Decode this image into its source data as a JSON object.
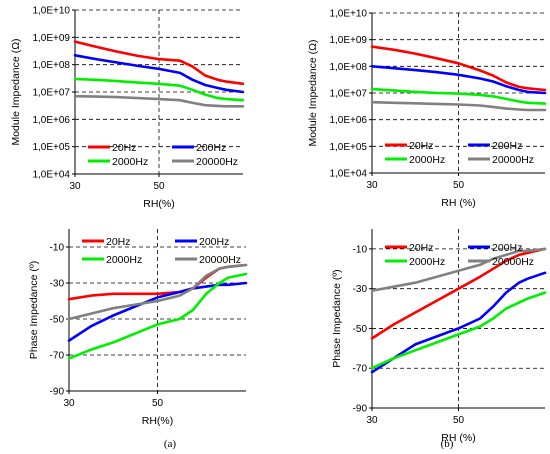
{
  "chart_data": [
    {
      "id": "a-top",
      "type": "line",
      "xlabel": "RH(%)",
      "ylabel": "Module Impedance (Ω)",
      "xlim": [
        30,
        70
      ],
      "ylim": [
        10000,
        10000000000
      ],
      "yscale": "log",
      "xticks": [
        30,
        50
      ],
      "xtick_labels": [
        "30",
        "50"
      ],
      "yticks": [
        10000,
        100000,
        1000000,
        10000000,
        100000000,
        1000000000,
        10000000000
      ],
      "ytick_labels": [
        "1,0E+04",
        "1,0E+05",
        "1,0E+06",
        "1,0E+07",
        "1,0E+08",
        "1,0E+09",
        "1,0E+10"
      ],
      "grid": "dashed",
      "legend": "bottom",
      "series": [
        {
          "name": "20Hz",
          "color": "#ff0000",
          "x": [
            30,
            35,
            40,
            45,
            50,
            55,
            58,
            61,
            64,
            66,
            70
          ],
          "y": [
            700000000,
            450000000,
            300000000,
            210000000,
            160000000,
            140000000,
            85000000,
            40000000,
            28000000,
            24000000,
            20000000
          ]
        },
        {
          "name": "200Hz",
          "color": "#0000ff",
          "x": [
            30,
            35,
            40,
            45,
            50,
            55,
            58,
            61,
            64,
            66,
            70
          ],
          "y": [
            220000000,
            160000000,
            120000000,
            90000000,
            70000000,
            50000000,
            28000000,
            18000000,
            14000000,
            12000000,
            10000000
          ]
        },
        {
          "name": "2000Hz",
          "color": "#00ee00",
          "x": [
            30,
            35,
            40,
            45,
            50,
            55,
            58,
            61,
            64,
            66,
            70
          ],
          "y": [
            30000000,
            28000000,
            25000000,
            22000000,
            20000000,
            17000000,
            12000000,
            8000000,
            6000000,
            5500000,
            5000000
          ]
        },
        {
          "name": "20000Hz",
          "color": "#808080",
          "x": [
            30,
            35,
            40,
            45,
            50,
            55,
            58,
            61,
            64,
            66,
            70
          ],
          "y": [
            7000000,
            6800000,
            6500000,
            6000000,
            5500000,
            5000000,
            4000000,
            3300000,
            3100000,
            3000000,
            3000000
          ]
        }
      ]
    },
    {
      "id": "b-top",
      "type": "line",
      "xlabel": "RH (%)",
      "ylabel": "Module Impedance (Ω)",
      "xlim": [
        30,
        70
      ],
      "ylim": [
        10000,
        10000000000
      ],
      "yscale": "log",
      "xticks": [
        30,
        50
      ],
      "xtick_labels": [
        "30",
        "50"
      ],
      "yticks": [
        10000,
        100000,
        1000000,
        10000000,
        100000000,
        1000000000,
        10000000000
      ],
      "ytick_labels": [
        "1,0E+04",
        "1,0E+05",
        "1,0E+06",
        "1,0E+07",
        "1,0E+08",
        "1,0E+09",
        "1,0E+10"
      ],
      "grid": "dashed",
      "legend": "bottom",
      "series": [
        {
          "name": "20Hz",
          "color": "#ff0000",
          "x": [
            30,
            35,
            40,
            45,
            50,
            55,
            58,
            61,
            64,
            66,
            70
          ],
          "y": [
            550000000,
            420000000,
            300000000,
            200000000,
            130000000,
            70000000,
            45000000,
            25000000,
            17000000,
            15000000,
            13000000
          ]
        },
        {
          "name": "200Hz",
          "color": "#0000ff",
          "x": [
            30,
            35,
            40,
            45,
            50,
            55,
            58,
            61,
            64,
            66,
            70
          ],
          "y": [
            100000000,
            85000000,
            72000000,
            60000000,
            48000000,
            35000000,
            27000000,
            18000000,
            13000000,
            11000000,
            10000000
          ]
        },
        {
          "name": "2000Hz",
          "color": "#00ee00",
          "x": [
            30,
            35,
            40,
            45,
            50,
            55,
            58,
            61,
            64,
            66,
            70
          ],
          "y": [
            14000000,
            12500000,
            11000000,
            10000000,
            9500000,
            8500000,
            7500000,
            6000000,
            4800000,
            4300000,
            4000000
          ]
        },
        {
          "name": "20000Hz",
          "color": "#808080",
          "x": [
            30,
            35,
            40,
            45,
            50,
            55,
            58,
            61,
            64,
            66,
            70
          ],
          "y": [
            4500000,
            4300000,
            4100000,
            3900000,
            3700000,
            3400000,
            3000000,
            2600000,
            2400000,
            2300000,
            2300000
          ]
        }
      ]
    },
    {
      "id": "a-bottom",
      "type": "line",
      "xlabel": "RH(%)",
      "ylabel": "Phase Impedance (º)",
      "xlim": [
        30,
        70
      ],
      "ylim": [
        -90,
        0
      ],
      "yscale": "linear",
      "xticks": [
        30,
        50
      ],
      "xtick_labels": [
        "30",
        "50"
      ],
      "yticks": [
        -90,
        -70,
        -50,
        -30,
        -10
      ],
      "ytick_labels": [
        "-90",
        "-70",
        "-50",
        "-30",
        "-10"
      ],
      "grid": "dashed",
      "legend": "top",
      "series": [
        {
          "name": "20Hz",
          "color": "#ff0000",
          "x": [
            30,
            35,
            40,
            45,
            50,
            55,
            58,
            61,
            64,
            66,
            70
          ],
          "y": [
            -39,
            -37,
            -36,
            -36,
            -36,
            -35,
            -33,
            -27,
            -22,
            -21,
            -20
          ]
        },
        {
          "name": "200Hz",
          "color": "#0000ff",
          "x": [
            30,
            35,
            40,
            45,
            50,
            55,
            58,
            61,
            64,
            66,
            70
          ],
          "y": [
            -62,
            -54,
            -48,
            -43,
            -38,
            -35,
            -33,
            -32,
            -31,
            -31,
            -30
          ]
        },
        {
          "name": "2000Hz",
          "color": "#00ee00",
          "x": [
            30,
            35,
            40,
            45,
            50,
            55,
            58,
            61,
            64,
            66,
            70
          ],
          "y": [
            -72,
            -67,
            -63,
            -58,
            -53,
            -50,
            -45,
            -36,
            -30,
            -27,
            -25
          ]
        },
        {
          "name": "20000Hz",
          "color": "#808080",
          "x": [
            30,
            35,
            40,
            45,
            50,
            55,
            58,
            61,
            64,
            66,
            70
          ],
          "y": [
            -50,
            -47,
            -44,
            -42,
            -40,
            -37,
            -33,
            -26,
            -22,
            -21,
            -20
          ]
        }
      ]
    },
    {
      "id": "b-bottom",
      "type": "line",
      "xlabel": "RH (%)",
      "ylabel": "Phase Impedance (º)",
      "xlim": [
        30,
        70
      ],
      "ylim": [
        -90,
        0
      ],
      "yscale": "linear",
      "xticks": [
        30,
        50
      ],
      "xtick_labels": [
        "30",
        "50"
      ],
      "yticks": [
        -90,
        -70,
        -50,
        -30,
        -10
      ],
      "ytick_labels": [
        "-90",
        "-70",
        "-50",
        "-30",
        "-10"
      ],
      "grid": "dashed",
      "legend": "top",
      "series": [
        {
          "name": "20Hz",
          "color": "#ff0000",
          "x": [
            30,
            35,
            40,
            45,
            50,
            55,
            58,
            61,
            64,
            66,
            70
          ],
          "y": [
            -55,
            -48,
            -42,
            -36,
            -30,
            -24,
            -20,
            -16,
            -13,
            -12,
            -10
          ]
        },
        {
          "name": "200Hz",
          "color": "#0000ff",
          "x": [
            30,
            35,
            40,
            45,
            50,
            55,
            58,
            61,
            64,
            66,
            70
          ],
          "y": [
            -72,
            -65,
            -58,
            -54,
            -50,
            -45,
            -39,
            -32,
            -27,
            -25,
            -22
          ]
        },
        {
          "name": "2000Hz",
          "color": "#00ee00",
          "x": [
            30,
            35,
            40,
            45,
            50,
            55,
            58,
            61,
            64,
            66,
            70
          ],
          "y": [
            -70,
            -65,
            -61,
            -57,
            -53,
            -49,
            -45,
            -40,
            -37,
            -35,
            -32
          ]
        },
        {
          "name": "20000Hz",
          "color": "#808080",
          "x": [
            30,
            35,
            40,
            45,
            50,
            55,
            58,
            61,
            64,
            66,
            70
          ],
          "y": [
            -31,
            -29,
            -27,
            -24,
            -21,
            -18,
            -15,
            -13,
            -11,
            -11,
            -10
          ]
        }
      ]
    }
  ],
  "panel_labels": {
    "a": "(a)",
    "b": "(b)"
  }
}
